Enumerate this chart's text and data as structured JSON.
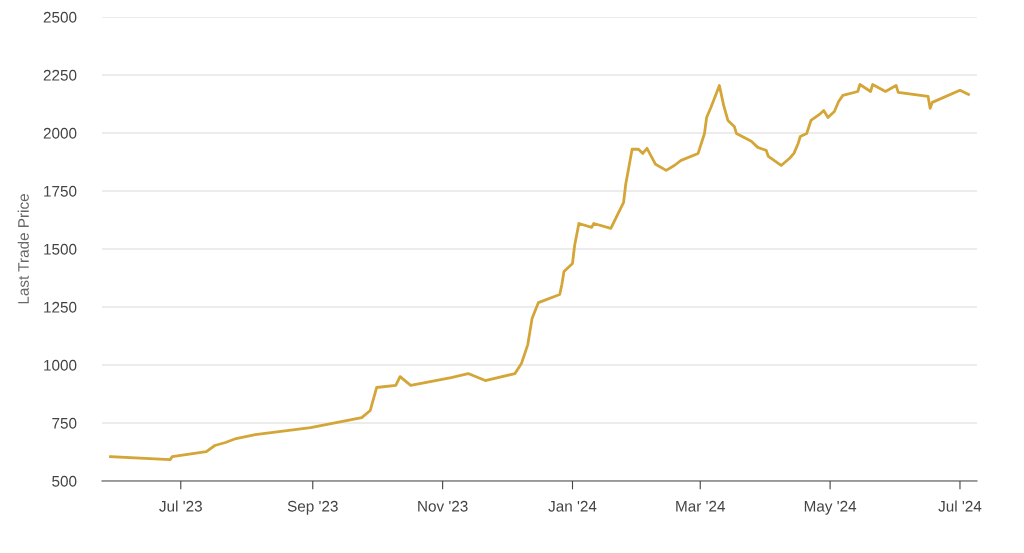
{
  "chart_data": {
    "type": "line",
    "ylabel": "Last Trade Price",
    "x": [
      "2023-05-29",
      "2023-06-26",
      "2023-06-27",
      "2023-07-13",
      "2023-07-17",
      "2023-07-22",
      "2023-07-27",
      "2023-08-05",
      "2023-08-31",
      "2023-09-24",
      "2023-09-28",
      "2023-10-01",
      "2023-10-10",
      "2023-10-12",
      "2023-10-17",
      "2023-11-05",
      "2023-11-13",
      "2023-11-21",
      "2023-12-05",
      "2023-12-08",
      "2023-12-11",
      "2023-12-13",
      "2023-12-16",
      "2023-12-26",
      "2023-12-27",
      "2023-12-28",
      "2024-01-01",
      "2024-01-02",
      "2024-01-04",
      "2024-01-10",
      "2024-01-11",
      "2024-01-19",
      "2024-01-25",
      "2024-01-26",
      "2024-01-29",
      "2024-02-01",
      "2024-02-03",
      "2024-02-05",
      "2024-02-09",
      "2024-02-14",
      "2024-02-18",
      "2024-02-21",
      "2024-02-29",
      "2024-03-03",
      "2024-03-04",
      "2024-03-06",
      "2024-03-10",
      "2024-03-12",
      "2024-03-14",
      "2024-03-17",
      "2024-03-18",
      "2024-03-25",
      "2024-03-28",
      "2024-04-01",
      "2024-04-02",
      "2024-04-06",
      "2024-04-08",
      "2024-04-12",
      "2024-04-14",
      "2024-04-16",
      "2024-04-17",
      "2024-04-20",
      "2024-04-22",
      "2024-04-26",
      "2024-04-28",
      "2024-04-30",
      "2024-05-03",
      "2024-05-05",
      "2024-05-07",
      "2024-05-14",
      "2024-05-15",
      "2024-05-20",
      "2024-05-21",
      "2024-05-27",
      "2024-06-01",
      "2024-06-02",
      "2024-06-16",
      "2024-06-17",
      "2024-06-18",
      "2024-07-01",
      "2024-07-05"
    ],
    "series": [
      {
        "color": "#d4a537",
        "values": [
          605,
          592,
          605,
          627,
          653,
          666,
          683,
          700,
          730,
          773,
          804,
          903,
          912,
          950,
          912,
          946,
          963,
          933,
          963,
          1006,
          1088,
          1200,
          1269,
          1304,
          1347,
          1403,
          1438,
          1515,
          1610,
          1593,
          1610,
          1589,
          1701,
          1779,
          1930,
          1930,
          1912,
          1934,
          1865,
          1839,
          1861,
          1882,
          1912,
          1998,
          2067,
          2110,
          2205,
          2119,
          2054,
          2028,
          1998,
          1964,
          1938,
          1925,
          1899,
          1873,
          1860,
          1891,
          1912,
          1955,
          1985,
          1998,
          2054,
          2080,
          2097,
          2067,
          2093,
          2136,
          2162,
          2179,
          2209,
          2179,
          2209,
          2179,
          2205,
          2175,
          2158,
          2106,
          2132,
          2184,
          2166
        ]
      }
    ],
    "xlim": [
      "2023-05-25",
      "2024-07-09"
    ],
    "xticks": [
      {
        "value": "2023-07-01",
        "label": "Jul '23"
      },
      {
        "value": "2023-09-01",
        "label": "Sep '23"
      },
      {
        "value": "2023-11-01",
        "label": "Nov '23"
      },
      {
        "value": "2024-01-01",
        "label": "Jan '24"
      },
      {
        "value": "2024-03-01",
        "label": "Mar '24"
      },
      {
        "value": "2024-05-01",
        "label": "May '24"
      },
      {
        "value": "2024-07-01",
        "label": "Jul '24"
      }
    ],
    "ylim": [
      500,
      2500
    ],
    "yticks": [
      500,
      750,
      1000,
      1250,
      1500,
      1750,
      2000,
      2250,
      2500
    ],
    "grid": "y",
    "marker": "none",
    "line_style": "solid",
    "legend": false
  }
}
